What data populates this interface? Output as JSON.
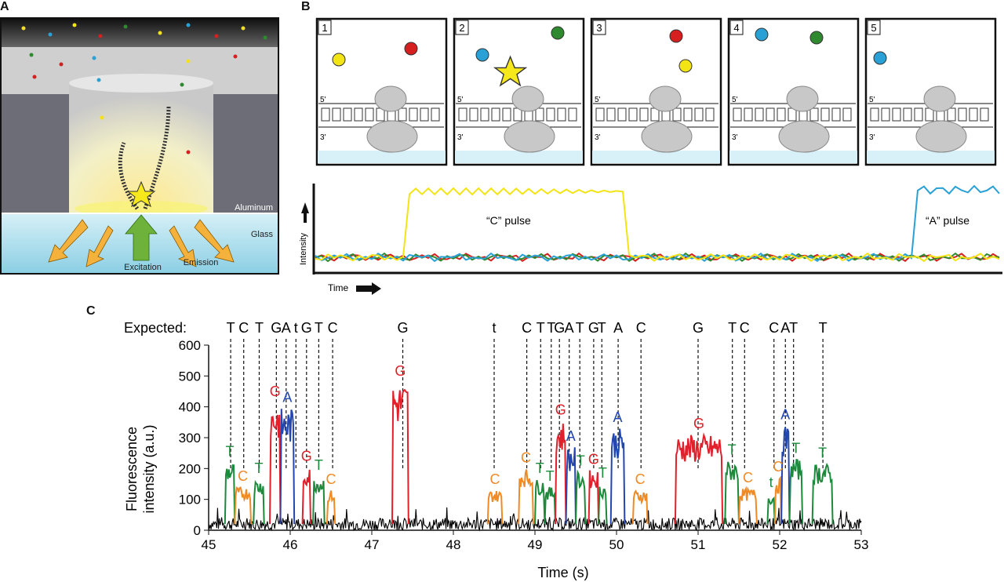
{
  "panels": {
    "a": {
      "letter": "A",
      "aluminum_label": "Aluminum",
      "glass_label": "Glass",
      "excitation_label": "Excitation",
      "emission_label": "Emission"
    },
    "b": {
      "letter": "B",
      "steps": [
        "1",
        "2",
        "3",
        "4",
        "5"
      ],
      "strand_5": "5'",
      "strand_3": "3'",
      "trace": {
        "c_pulse": "“C” pulse",
        "a_pulse": "“A” pulse",
        "ylabel": "Intensity",
        "xlabel": "Time"
      }
    },
    "c": {
      "letter": "C",
      "expected_label": "Expected:"
    }
  },
  "colors": {
    "A": "#2346b0",
    "C": "#f08a24",
    "G": "#e0202a",
    "T": "#1c8a3a",
    "noise": "#000000",
    "yellow": "#f2e415",
    "blue": "#2aa1d6",
    "red": "#d62020",
    "green": "#2f8a2f"
  },
  "chart_data": {
    "type": "line",
    "xlabel": "Time (s)",
    "ylabel_lines": [
      "Fluorescence",
      "intensity (a.u.)"
    ],
    "xlim": [
      45,
      53
    ],
    "ylim": [
      0,
      600
    ],
    "xticks": [
      45,
      46,
      47,
      48,
      49,
      50,
      51,
      52,
      53
    ],
    "yticks": [
      0,
      100,
      200,
      300,
      400,
      500,
      600
    ],
    "expected": [
      {
        "label": "T",
        "x": 45.27
      },
      {
        "label": "C",
        "x": 45.43
      },
      {
        "label": "T",
        "x": 45.62
      },
      {
        "label": "G",
        "x": 45.83
      },
      {
        "label": "A",
        "x": 45.95
      },
      {
        "label": "t",
        "x": 46.07
      },
      {
        "label": "G",
        "x": 46.2
      },
      {
        "label": "T",
        "x": 46.35
      },
      {
        "label": "C",
        "x": 46.52
      },
      {
        "label": "G",
        "x": 47.38
      },
      {
        "label": "t",
        "x": 48.5
      },
      {
        "label": "C",
        "x": 48.9
      },
      {
        "label": "T",
        "x": 49.07
      },
      {
        "label": "T",
        "x": 49.2
      },
      {
        "label": "G",
        "x": 49.3
      },
      {
        "label": "A",
        "x": 49.42
      },
      {
        "label": "T",
        "x": 49.55
      },
      {
        "label": "G",
        "x": 49.72
      },
      {
        "label": "T",
        "x": 49.82
      },
      {
        "label": "A",
        "x": 50.02
      },
      {
        "label": "C",
        "x": 50.3
      },
      {
        "label": "G",
        "x": 51.0
      },
      {
        "label": "T",
        "x": 51.42
      },
      {
        "label": "C",
        "x": 51.57
      },
      {
        "label": "C",
        "x": 51.93
      },
      {
        "label": "A",
        "x": 52.07
      },
      {
        "label": "T",
        "x": 52.17
      },
      {
        "label": "T",
        "x": 52.53
      }
    ],
    "pulses": [
      {
        "base": "T",
        "label": "T",
        "start": 45.2,
        "end": 45.32,
        "height": 220
      },
      {
        "base": "C",
        "label": "C",
        "start": 45.32,
        "end": 45.52,
        "height": 140
      },
      {
        "base": "T",
        "label": "T",
        "start": 45.55,
        "end": 45.68,
        "height": 165
      },
      {
        "base": "G",
        "label": "G",
        "start": 45.75,
        "end": 45.88,
        "height": 415
      },
      {
        "base": "A",
        "label": "A",
        "start": 45.88,
        "end": 46.05,
        "height": 395
      },
      {
        "base": "G",
        "label": "G",
        "start": 46.15,
        "end": 46.25,
        "height": 205
      },
      {
        "base": "T",
        "label": "T",
        "start": 46.28,
        "end": 46.42,
        "height": 175
      },
      {
        "base": "C",
        "label": "C",
        "start": 46.45,
        "end": 46.55,
        "height": 130
      },
      {
        "base": "G",
        "label": "G",
        "start": 47.25,
        "end": 47.45,
        "height": 480
      },
      {
        "base": "C",
        "label": "C",
        "start": 48.42,
        "end": 48.6,
        "height": 130
      },
      {
        "base": "C",
        "label": "C",
        "start": 48.8,
        "end": 48.98,
        "height": 200
      },
      {
        "base": "T",
        "label": "T",
        "start": 49.0,
        "end": 49.12,
        "height": 165
      },
      {
        "base": "T",
        "label": "T",
        "start": 49.12,
        "end": 49.25,
        "height": 140
      },
      {
        "base": "G",
        "label": "G",
        "start": 49.25,
        "end": 49.38,
        "height": 355
      },
      {
        "base": "A",
        "label": "A",
        "start": 49.38,
        "end": 49.5,
        "height": 270
      },
      {
        "base": "T",
        "label": "T",
        "start": 49.5,
        "end": 49.62,
        "height": 190
      },
      {
        "base": "G",
        "label": "G",
        "start": 49.66,
        "end": 49.78,
        "height": 195
      },
      {
        "base": "T",
        "label": "T",
        "start": 49.78,
        "end": 49.88,
        "height": 150
      },
      {
        "base": "A",
        "label": "A",
        "start": 49.93,
        "end": 50.1,
        "height": 330
      },
      {
        "base": "C",
        "label": "C",
        "start": 50.2,
        "end": 50.38,
        "height": 130
      },
      {
        "base": "G",
        "label": "G",
        "start": 50.72,
        "end": 51.3,
        "height": 310
      },
      {
        "base": "T",
        "label": "T",
        "start": 51.33,
        "end": 51.5,
        "height": 225
      },
      {
        "base": "C",
        "label": "C",
        "start": 51.5,
        "end": 51.72,
        "height": 135
      },
      {
        "base": "T",
        "label": "t",
        "start": 51.85,
        "end": 51.94,
        "height": 120
      },
      {
        "base": "C",
        "label": "C",
        "start": 51.94,
        "end": 52.02,
        "height": 170
      },
      {
        "base": "A",
        "label": "A",
        "start": 52.02,
        "end": 52.12,
        "height": 340
      },
      {
        "base": "T",
        "label": "T",
        "start": 52.12,
        "end": 52.28,
        "height": 230
      },
      {
        "base": "T",
        "label": "T",
        "start": 52.4,
        "end": 52.65,
        "height": 215
      }
    ]
  }
}
